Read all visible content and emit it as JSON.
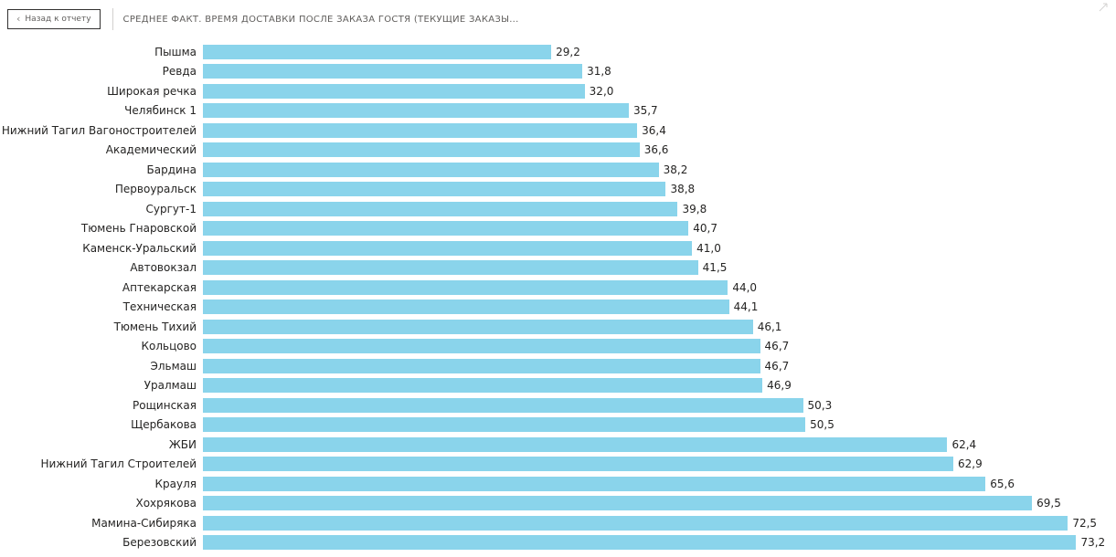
{
  "header": {
    "back_button": {
      "chevron": "‹",
      "label": "Назад к отчету"
    },
    "title": "СРЕДНЕЕ ФАКТ. ВРЕМЯ ДОСТАВКИ ПОСЛЕ ЗАКАЗА ГОСТЯ (ТЕКУЩИЕ ЗАКАЗЫ..."
  },
  "chart_data": {
    "type": "bar",
    "orientation": "horizontal",
    "title": "СРЕДНЕЕ ФАКТ. ВРЕМЯ ДОСТАВКИ ПОСЛЕ ЗАКАЗА ГОСТЯ (ТЕКУЩИЕ ЗАКАЗЫ...",
    "categories": [
      "Пышма",
      "Ревда",
      "Широкая речка",
      "Челябинск 1",
      "Нижний Тагил Вагоностроителей",
      "Академический",
      "Бардина",
      "Первоуральск",
      "Сургут-1",
      "Тюмень Гнаровской",
      "Каменск-Уральский",
      "Автовокзал",
      "Аптекарская",
      "Техническая",
      "Тюмень Тихий",
      "Кольцово",
      "Эльмаш",
      "Уралмаш",
      "Рощинская",
      "Щербакова",
      "ЖБИ",
      "Нижний Тагил Строителей",
      "Крауля",
      "Хохрякова",
      "Мамина-Сибиряка",
      "Березовский"
    ],
    "values": [
      29.2,
      31.8,
      32.0,
      35.7,
      36.4,
      36.6,
      38.2,
      38.8,
      39.8,
      40.7,
      41.0,
      41.5,
      44.0,
      44.1,
      46.1,
      46.7,
      46.7,
      46.9,
      50.3,
      50.5,
      62.4,
      62.9,
      65.6,
      69.5,
      72.5,
      73.2
    ],
    "value_labels": [
      "29,2",
      "31,8",
      "32,0",
      "35,7",
      "36,4",
      "36,6",
      "38,2",
      "38,8",
      "39,8",
      "40,7",
      "41,0",
      "41,5",
      "44,0",
      "44,1",
      "46,1",
      "46,7",
      "46,7",
      "46,9",
      "50,3",
      "50,5",
      "62,4",
      "62,9",
      "65,6",
      "69,5",
      "72,5",
      "73,2"
    ],
    "xlim": [
      0,
      76
    ],
    "bar_color": "#8ad4eb",
    "decimal_separator": ",",
    "grid": false,
    "legend": false,
    "data_labels": true
  }
}
